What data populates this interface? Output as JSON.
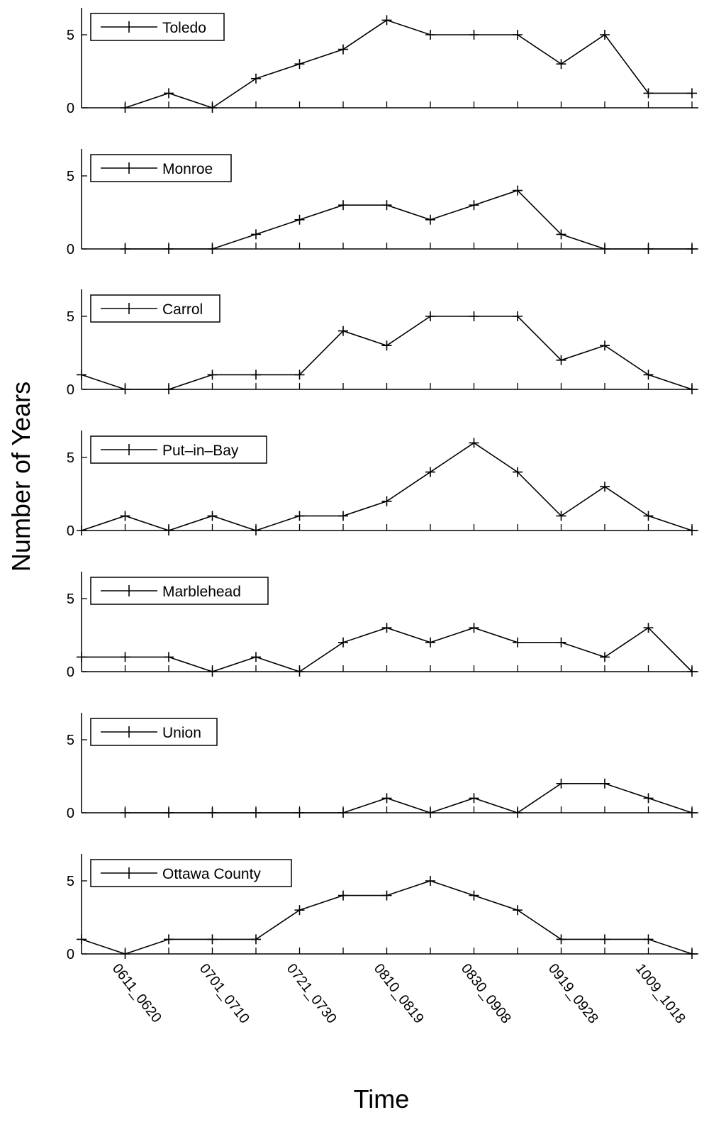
{
  "chart_data": {
    "type": "line",
    "ylabel": "Number of Years",
    "xlabel": "Time",
    "ylim": [
      0,
      7
    ],
    "yticks": [
      0,
      5
    ],
    "grid": false,
    "legend_position": "top-left",
    "x_tick_labels": [
      "0611_0620",
      "0701_0710",
      "0721_0730",
      "0810_0819",
      "0830_0908",
      "0919_0928",
      "1009_1018"
    ],
    "x_tick_label_indices": [
      1,
      3,
      5,
      7,
      9,
      11,
      13
    ],
    "series": [
      {
        "name": "Toledo",
        "values": [
          null,
          0,
          1,
          0,
          2,
          3,
          4,
          6,
          5,
          5,
          5,
          3,
          5,
          1,
          1
        ]
      },
      {
        "name": "Monroe",
        "values": [
          null,
          0,
          0,
          0,
          1,
          2,
          3,
          3,
          2,
          3,
          4,
          1,
          0,
          0,
          0
        ]
      },
      {
        "name": "Carrol",
        "values": [
          1,
          0,
          0,
          1,
          1,
          1,
          4,
          3,
          5,
          5,
          5,
          2,
          3,
          1,
          0
        ]
      },
      {
        "name": "Put–in–Bay",
        "values": [
          0,
          1,
          0,
          1,
          0,
          1,
          1,
          2,
          4,
          6,
          4,
          1,
          3,
          1,
          0
        ]
      },
      {
        "name": "Marblehead",
        "values": [
          1,
          1,
          1,
          0,
          1,
          0,
          2,
          3,
          2,
          3,
          2,
          2,
          1,
          3,
          0
        ]
      },
      {
        "name": "Union",
        "values": [
          null,
          0,
          0,
          0,
          0,
          0,
          0,
          1,
          0,
          1,
          0,
          2,
          2,
          1,
          0
        ]
      },
      {
        "name": "Ottawa County",
        "values": [
          1,
          0,
          1,
          1,
          1,
          3,
          4,
          4,
          5,
          4,
          3,
          1,
          1,
          1,
          0
        ]
      }
    ]
  }
}
